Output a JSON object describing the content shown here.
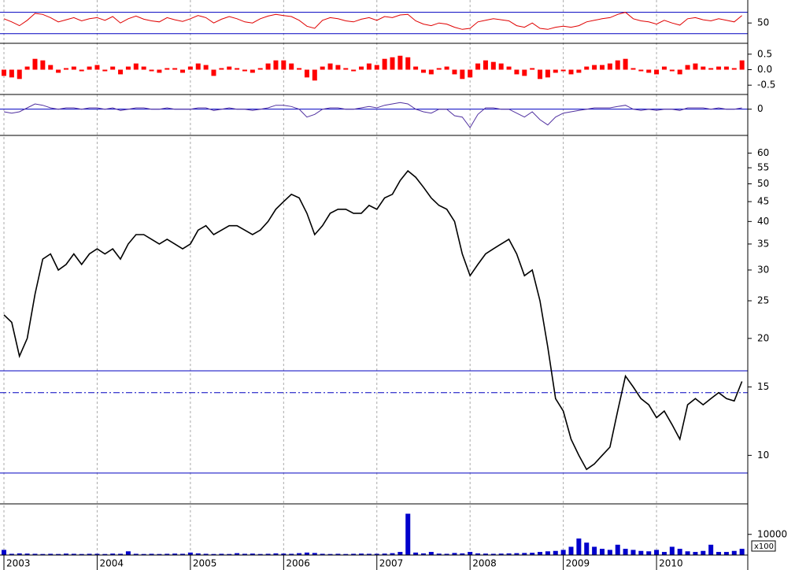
{
  "chart_data": [
    {
      "type": "line",
      "color": "#e00000",
      "ylim": [
        12,
        93
      ],
      "yticks": [
        50
      ],
      "hlines": [
        70,
        30
      ],
      "hline_color": "#0000c0",
      "values": [
        58,
        52,
        45,
        55,
        68,
        66,
        60,
        52,
        56,
        60,
        54,
        58,
        60,
        55,
        62,
        50,
        58,
        63,
        57,
        54,
        52,
        60,
        56,
        53,
        58,
        64,
        60,
        50,
        57,
        62,
        58,
        52,
        50,
        58,
        63,
        66,
        64,
        62,
        55,
        44,
        40,
        55,
        60,
        58,
        54,
        52,
        57,
        60,
        55,
        62,
        60,
        65,
        66,
        54,
        48,
        45,
        50,
        48,
        42,
        38,
        40,
        52,
        55,
        58,
        56,
        54,
        45,
        42,
        50,
        40,
        38,
        42,
        44,
        42,
        45,
        52,
        55,
        58,
        60,
        66,
        70,
        58,
        54,
        52,
        48,
        55,
        50,
        46,
        58,
        60,
        56,
        54,
        58,
        55,
        52,
        64
      ]
    },
    {
      "type": "bar",
      "color": "#ff0000",
      "ylim": [
        -0.8,
        0.8
      ],
      "yticks": [
        0.5,
        {
          "value": 0,
          "label": "0.0"
        },
        -0.5
      ],
      "values": [
        -0.2,
        -0.25,
        -0.3,
        0.1,
        0.35,
        0.3,
        0.15,
        -0.1,
        0.05,
        0.1,
        -0.05,
        0.1,
        0.15,
        -0.05,
        0.1,
        -0.15,
        0.1,
        0.2,
        0.1,
        -0.05,
        -0.1,
        0.05,
        0.05,
        -0.1,
        0.1,
        0.2,
        0.15,
        -0.2,
        0.05,
        0.1,
        0.05,
        -0.05,
        -0.1,
        0.05,
        0.2,
        0.3,
        0.3,
        0.2,
        0.05,
        -0.25,
        -0.35,
        0.1,
        0.2,
        0.15,
        0.05,
        -0.05,
        0.1,
        0.2,
        0.15,
        0.35,
        0.4,
        0.45,
        0.4,
        0.1,
        -0.1,
        -0.15,
        0.05,
        0.1,
        -0.15,
        -0.3,
        -0.25,
        0.2,
        0.3,
        0.25,
        0.2,
        0.1,
        -0.15,
        -0.2,
        0.05,
        -0.3,
        -0.25,
        -0.1,
        -0.05,
        -0.15,
        -0.1,
        0.1,
        0.15,
        0.15,
        0.2,
        0.3,
        0.35,
        0.05,
        -0.05,
        -0.1,
        -0.15,
        0.1,
        -0.05,
        -0.15,
        0.15,
        0.2,
        0.1,
        0.05,
        0.1,
        0.1,
        0.05,
        0.3
      ]
    },
    {
      "type": "line",
      "color": "#5030a0",
      "ylim": [
        -1,
        0.5
      ],
      "yticks": [
        0
      ],
      "hlines": [
        0
      ],
      "hline_color": "#0000c0",
      "values": [
        -0.1,
        -0.15,
        -0.1,
        0.05,
        0.2,
        0.15,
        0.05,
        0,
        0.05,
        0.05,
        0,
        0.05,
        0.05,
        0,
        0.05,
        -0.05,
        0,
        0.05,
        0.05,
        0,
        0,
        0.05,
        0,
        0,
        0,
        0.05,
        0.05,
        -0.05,
        0,
        0.05,
        0,
        0,
        -0.05,
        0,
        0.05,
        0.15,
        0.15,
        0.1,
        0,
        -0.3,
        -0.2,
        0,
        0.05,
        0.05,
        0,
        0,
        0.05,
        0.1,
        0.05,
        0.15,
        0.2,
        0.25,
        0.2,
        0,
        -0.1,
        -0.15,
        0,
        0,
        -0.25,
        -0.3,
        -0.7,
        -0.2,
        0.05,
        0.05,
        0,
        0,
        -0.15,
        -0.3,
        -0.1,
        -0.4,
        -0.6,
        -0.3,
        -0.15,
        -0.1,
        -0.05,
        0,
        0.05,
        0.05,
        0.05,
        0.1,
        0.15,
        0,
        -0.05,
        0,
        -0.05,
        0,
        0,
        -0.05,
        0.05,
        0.05,
        0.05,
        0,
        0.05,
        0,
        0,
        0.05
      ]
    },
    {
      "type": "line",
      "color": "#000000",
      "log_scale": true,
      "ylim": [
        7.5,
        65.7
      ],
      "yticks": [
        60,
        55,
        50,
        45,
        40,
        35,
        30,
        25,
        20,
        15,
        10
      ],
      "hlines": [
        16.5,
        14.5,
        9
      ],
      "hline_styles": [
        "solid",
        "dashdot",
        "solid"
      ],
      "hline_color": "#0000c0",
      "values": [
        23,
        22,
        18,
        20,
        26,
        32,
        33,
        30,
        31,
        33,
        31,
        33,
        34,
        33,
        34,
        32,
        35,
        37,
        37,
        36,
        35,
        36,
        35,
        34,
        35,
        38,
        39,
        37,
        38,
        39,
        39,
        38,
        37,
        38,
        40,
        43,
        45,
        47,
        46,
        42,
        37,
        39,
        42,
        43,
        43,
        42,
        42,
        44,
        43,
        46,
        47,
        51,
        54,
        52,
        49,
        46,
        44,
        43,
        40,
        33,
        29,
        31,
        33,
        34,
        35,
        36,
        33,
        29,
        30,
        25,
        19,
        14,
        13,
        11,
        10,
        9.2,
        9.5,
        10,
        10.5,
        13,
        16,
        15,
        14,
        13.5,
        12.5,
        13,
        12,
        11,
        13.5,
        14,
        13.5,
        14,
        14.5,
        14,
        13.8,
        15.5
      ]
    },
    {
      "type": "bar",
      "color": "#0000cc",
      "ylim": [
        0,
        24000
      ],
      "yticks": [
        10000
      ],
      "unit_label": "x100",
      "categories": [
        "2003",
        null,
        null,
        null,
        null,
        null,
        null,
        null,
        null,
        null,
        null,
        null,
        "2004",
        null,
        null,
        null,
        null,
        null,
        null,
        null,
        null,
        null,
        null,
        null,
        "2005",
        null,
        null,
        null,
        null,
        null,
        null,
        null,
        null,
        null,
        null,
        null,
        "2006",
        null,
        null,
        null,
        null,
        null,
        null,
        null,
        null,
        null,
        null,
        null,
        "2007",
        null,
        null,
        null,
        null,
        null,
        null,
        null,
        null,
        null,
        null,
        null,
        "2008",
        null,
        null,
        null,
        null,
        null,
        null,
        null,
        null,
        null,
        null,
        null,
        "2009",
        null,
        null,
        null,
        null,
        null,
        null,
        null,
        null,
        null,
        null,
        null,
        "2010",
        null,
        null,
        null,
        null,
        null,
        null,
        null,
        null,
        null,
        null,
        null
      ],
      "values": [
        2500,
        600,
        800,
        700,
        600,
        500,
        600,
        500,
        700,
        600,
        500,
        600,
        600,
        500,
        700,
        600,
        1800,
        600,
        500,
        600,
        500,
        600,
        700,
        600,
        1200,
        800,
        600,
        500,
        600,
        500,
        900,
        600,
        700,
        500,
        600,
        800,
        700,
        600,
        900,
        1200,
        1000,
        600,
        500,
        600,
        500,
        600,
        700,
        600,
        600,
        700,
        900,
        1500,
        20000,
        1200,
        800,
        1500,
        700,
        600,
        1000,
        800,
        1500,
        800,
        700,
        600,
        700,
        800,
        900,
        1000,
        1100,
        1500,
        1800,
        2000,
        2500,
        4000,
        8000,
        6000,
        4000,
        3000,
        2500,
        5000,
        3000,
        2500,
        2000,
        1800,
        2500,
        1500,
        4000,
        3000,
        1800,
        1500,
        2000,
        5000,
        1500,
        1500,
        2000,
        3000
      ]
    }
  ]
}
